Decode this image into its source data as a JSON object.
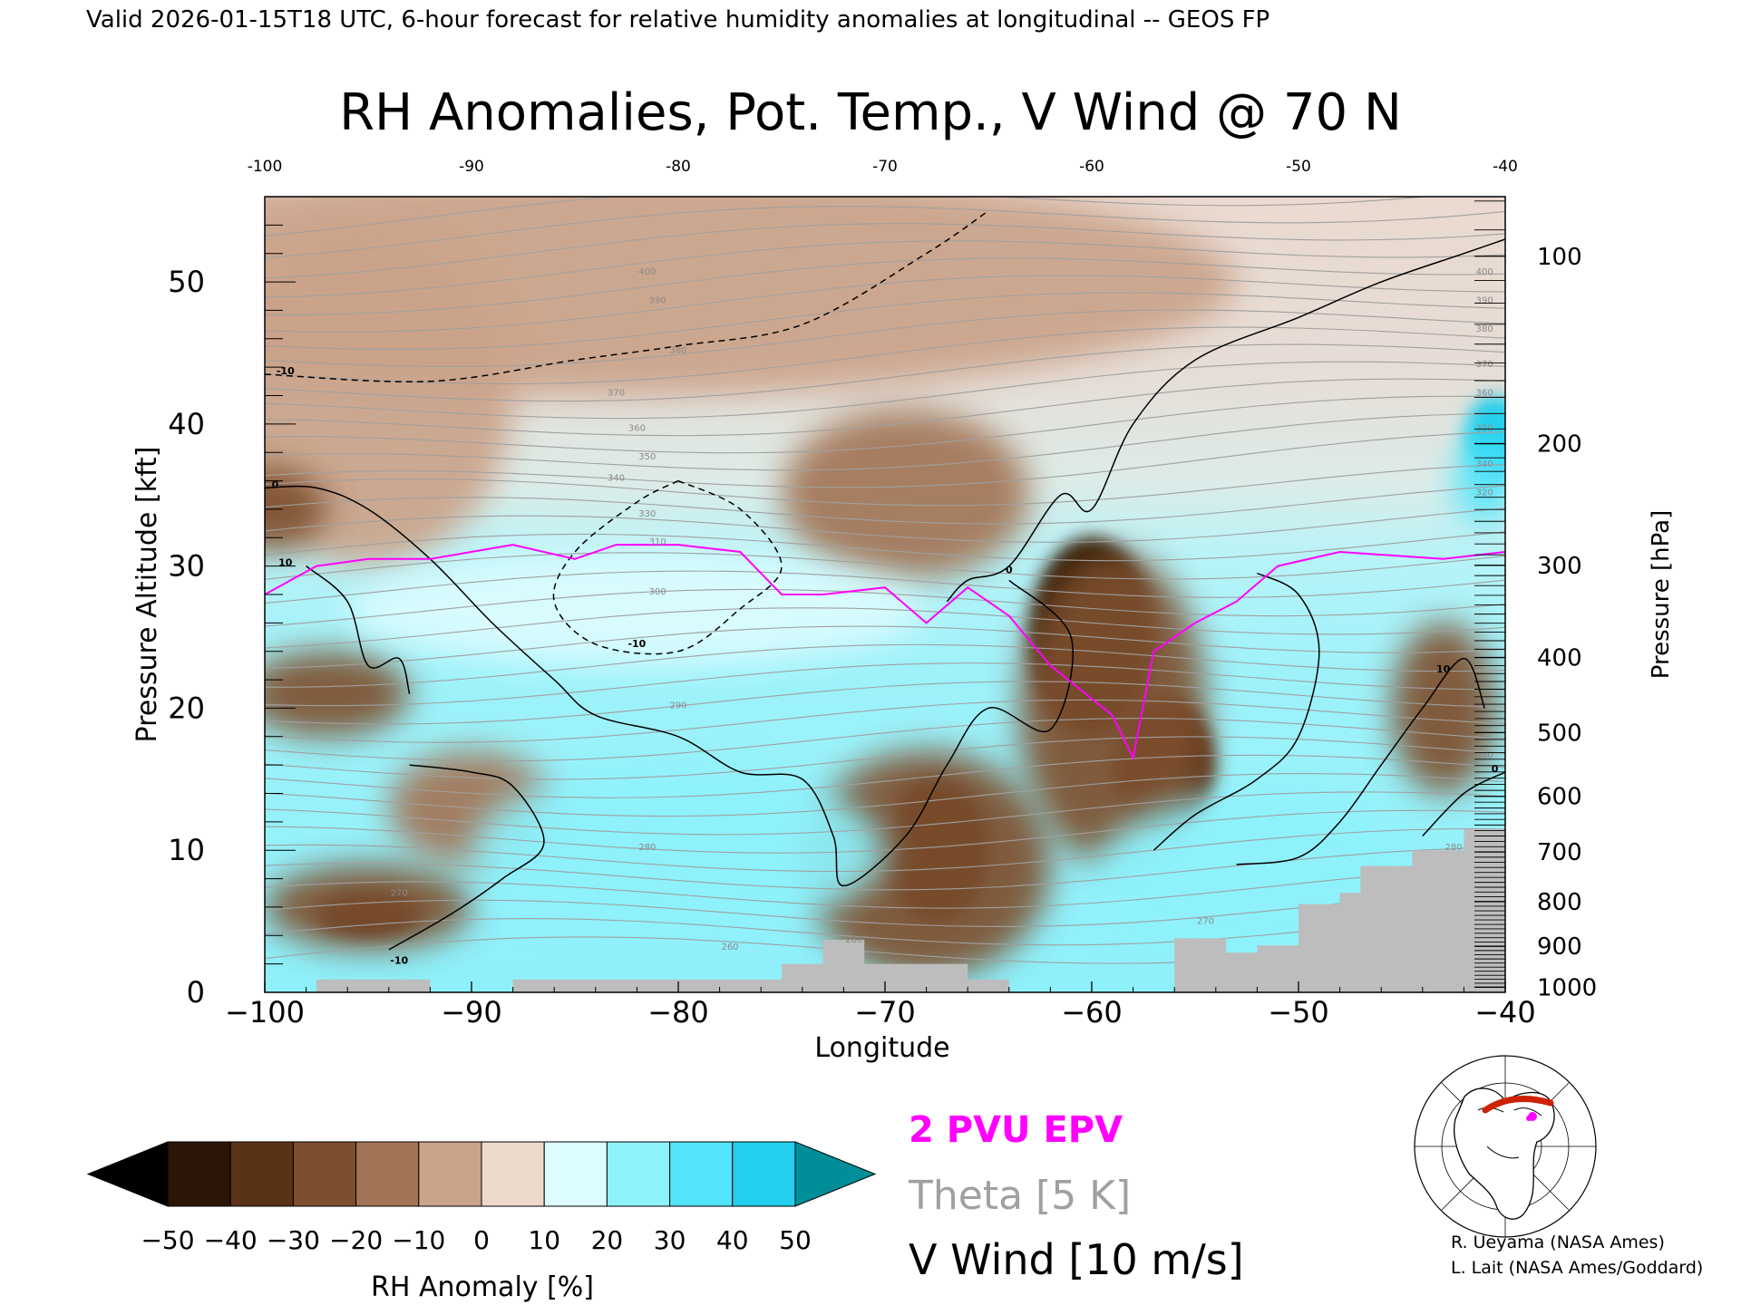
{
  "header": {
    "valid_line": "Valid 2026-01-15T18 UTC, 6-hour forecast for relative humidity anomalies at longitudinal -- GEOS FP"
  },
  "chart_data": {
    "type": "heatmap",
    "title": "RH Anomalies, Pot. Temp., V Wind @ 70 N",
    "xlabel": "Longitude",
    "ylabel": "Pressure Altitude [kft]",
    "y2label": "Pressure [hPa]",
    "xlim": [
      -100,
      -40
    ],
    "ylim": [
      0,
      56
    ],
    "x_ticks": [
      -100,
      -90,
      -80,
      -70,
      -60,
      -50,
      -40
    ],
    "x_tick_labels": [
      "−100",
      "−90",
      "−80",
      "−70",
      "−60",
      "−50",
      "−40"
    ],
    "x_top_tick_labels": [
      "-100",
      "-90",
      "-80",
      "-70",
      "-60",
      "-50",
      "-40"
    ],
    "y_ticks": [
      0,
      10,
      20,
      30,
      40,
      50
    ],
    "y_tick_labels": [
      "0",
      "10",
      "20",
      "30",
      "40",
      "50"
    ],
    "pressure_ticks": [
      {
        "hpa": 100,
        "label": "100"
      },
      {
        "hpa": 200,
        "label": "200"
      },
      {
        "hpa": 300,
        "label": "300"
      },
      {
        "hpa": 400,
        "label": "400"
      },
      {
        "hpa": 500,
        "label": "500"
      },
      {
        "hpa": 600,
        "label": "600"
      },
      {
        "hpa": 700,
        "label": "700"
      },
      {
        "hpa": 800,
        "label": "800"
      },
      {
        "hpa": 900,
        "label": "900"
      },
      {
        "hpa": 1000,
        "label": "1000"
      }
    ],
    "colorbar": {
      "label": "RH Anomaly [%]",
      "levels": [
        -50,
        -40,
        -30,
        -20,
        -10,
        0,
        10,
        20,
        30,
        40,
        50
      ],
      "tick_labels": [
        "−50",
        "−40",
        "−30",
        "−20",
        "−10",
        "0",
        "10",
        "20",
        "30",
        "40",
        "50"
      ],
      "colors": [
        "#000000",
        "#2b1506",
        "#5a3216",
        "#7e4f2e",
        "#a37556",
        "#caa38a",
        "#edd9cc",
        "#dcfcff",
        "#8ef2fc",
        "#52e4fa",
        "#22cfec",
        "#0aa8c8",
        "#008f99"
      ]
    },
    "legend": [
      {
        "label": "2 PVU EPV",
        "color": "#ff00ff"
      },
      {
        "label": "Theta [5 K]",
        "color": "#a0a0a0"
      },
      {
        "label": "V Wind [10 m/s]",
        "color": "#000000"
      }
    ],
    "anomaly_regions": [
      {
        "lon": -83,
        "alt": 50,
        "rx": 30,
        "ry": 8,
        "value": -5
      },
      {
        "lon": -95,
        "alt": 42,
        "rx": 7,
        "ry": 12,
        "value": -10
      },
      {
        "lon": -69,
        "alt": 35,
        "rx": 6,
        "ry": 6,
        "value": -15
      },
      {
        "lon": -100,
        "alt": 34,
        "rx": 3,
        "ry": 3,
        "value": -25
      },
      {
        "lon": -60,
        "alt": 25,
        "rx": 3,
        "ry": 7,
        "value": -45
      },
      {
        "lon": -56.5,
        "alt": 16,
        "rx": 2.5,
        "ry": 5,
        "value": -40
      },
      {
        "lon": -59,
        "alt": 20,
        "rx": 4.5,
        "ry": 11,
        "value": -25
      },
      {
        "lon": -67.5,
        "alt": 10,
        "rx": 2.5,
        "ry": 5,
        "value": -45
      },
      {
        "lon": -71,
        "alt": 11.5,
        "rx": 1.2,
        "ry": 2,
        "value": -40
      },
      {
        "lon": -68,
        "alt": 9,
        "rx": 6,
        "ry": 8,
        "value": -25
      },
      {
        "lon": -95,
        "alt": 5.5,
        "rx": 2.5,
        "ry": 1.5,
        "value": -45
      },
      {
        "lon": -95,
        "alt": 6,
        "rx": 5,
        "ry": 3,
        "value": -25
      },
      {
        "lon": -90,
        "alt": 13,
        "rx": 4,
        "ry": 4,
        "value": -20
      },
      {
        "lon": -97,
        "alt": 21,
        "rx": 4,
        "ry": 3,
        "value": -25
      },
      {
        "lon": -43,
        "alt": 20,
        "rx": 2.5,
        "ry": 6,
        "value": -25
      },
      {
        "lon": -82,
        "alt": 27,
        "rx": 14,
        "ry": 4,
        "value": 15
      },
      {
        "lon": -80,
        "alt": 10,
        "rx": 10,
        "ry": 6,
        "value": 20
      },
      {
        "lon": -52,
        "alt": 8,
        "rx": 8,
        "ry": 6,
        "value": 20
      },
      {
        "lon": -40.5,
        "alt": 39,
        "rx": 1.5,
        "ry": 3,
        "value": 45
      },
      {
        "lon": -41,
        "alt": 36,
        "rx": 1.5,
        "ry": 3,
        "value": 30
      }
    ],
    "epv_2pvu": [
      [
        -100,
        28
      ],
      [
        -97.5,
        30
      ],
      [
        -95,
        30.5
      ],
      [
        -92,
        30.5
      ],
      [
        -88,
        31.5
      ],
      [
        -85,
        30.5
      ],
      [
        -83,
        31.5
      ],
      [
        -80,
        31.5
      ],
      [
        -77,
        31
      ],
      [
        -75,
        28
      ],
      [
        -73,
        28
      ],
      [
        -70,
        28.5
      ],
      [
        -68,
        26
      ],
      [
        -66,
        28.5
      ],
      [
        -64,
        26.5
      ],
      [
        -62,
        23
      ],
      [
        -59,
        19.5
      ],
      [
        -58,
        16.5
      ],
      [
        -57,
        24
      ],
      [
        -55,
        26
      ],
      [
        -53,
        27.5
      ],
      [
        -51,
        30
      ],
      [
        -48,
        31
      ],
      [
        -43,
        30.5
      ],
      [
        -40,
        31
      ]
    ],
    "v_wind_contours": [
      {
        "label": "0",
        "points": [
          [
            -100,
            35.5
          ],
          [
            -97.5,
            35.5
          ],
          [
            -95,
            34
          ],
          [
            -92,
            30.5
          ],
          [
            -89,
            26
          ],
          [
            -86,
            22
          ],
          [
            -84,
            19.5
          ],
          [
            -80,
            18
          ],
          [
            -77,
            15.5
          ],
          [
            -74,
            15
          ],
          [
            -72.5,
            11
          ],
          [
            -72,
            7.5
          ],
          [
            -69,
            11
          ],
          [
            -67,
            16
          ],
          [
            -65,
            20
          ],
          [
            -62,
            18.5
          ],
          [
            -61,
            25
          ],
          [
            -64,
            29
          ]
        ]
      },
      {
        "label": "0",
        "points": [
          [
            -67,
            27.5
          ],
          [
            -66,
            29
          ],
          [
            -64,
            30
          ],
          [
            -61.5,
            35
          ],
          [
            -60,
            34
          ],
          [
            -58,
            40
          ],
          [
            -55,
            44.5
          ],
          [
            -50,
            47.5
          ],
          [
            -46,
            50
          ],
          [
            -42,
            52
          ],
          [
            -40,
            53
          ]
        ]
      },
      {
        "label": "-10",
        "points": [
          [
            -100,
            43.5
          ],
          [
            -92,
            43
          ],
          [
            -85,
            44.5
          ],
          [
            -80,
            45.5
          ],
          [
            -74,
            47
          ],
          [
            -68,
            52
          ],
          [
            -65,
            55
          ]
        ]
      },
      {
        "label": "-10",
        "points": [
          [
            -80,
            36
          ],
          [
            -77,
            34
          ],
          [
            -75,
            30
          ],
          [
            -77,
            27
          ],
          [
            -80,
            24
          ],
          [
            -84,
            24.5
          ],
          [
            -86,
            27.5
          ],
          [
            -85,
            31
          ],
          [
            -82,
            34.5
          ],
          [
            -80,
            36
          ]
        ]
      },
      {
        "label": "10",
        "points": [
          [
            -98,
            30
          ],
          [
            -96,
            27.5
          ],
          [
            -95,
            23
          ],
          [
            -93.5,
            23.5
          ],
          [
            -93,
            21
          ]
        ]
      },
      {
        "label": "0",
        "points": [
          [
            -93,
            16
          ],
          [
            -90,
            15.5
          ],
          [
            -88,
            14.5
          ],
          [
            -86.5,
            10.5
          ],
          [
            -88.5,
            8
          ],
          [
            -91,
            5.5
          ],
          [
            -94,
            3
          ]
        ]
      },
      {
        "label": "10",
        "points": [
          [
            -52,
            29.5
          ],
          [
            -50,
            28
          ],
          [
            -49,
            24
          ],
          [
            -50,
            18
          ],
          [
            -52,
            15
          ],
          [
            -55,
            12.5
          ],
          [
            -57,
            10
          ]
        ]
      },
      {
        "label": "10",
        "points": [
          [
            -41,
            20
          ],
          [
            -42,
            23.5
          ],
          [
            -44,
            20
          ],
          [
            -46,
            16
          ],
          [
            -48,
            12
          ],
          [
            -50,
            9.5
          ],
          [
            -53,
            9
          ]
        ]
      },
      {
        "label": "0",
        "points": [
          [
            -40,
            15.5
          ],
          [
            -42,
            14
          ],
          [
            -44,
            11
          ]
        ]
      }
    ],
    "topography": [
      [
        -100,
        0
      ],
      [
        -97.5,
        0
      ],
      [
        -97.5,
        0.9
      ],
      [
        -92,
        0.9
      ],
      [
        -92,
        0
      ],
      [
        -88,
        0
      ],
      [
        -88,
        0.9
      ],
      [
        -75,
        0.9
      ],
      [
        -75,
        2
      ],
      [
        -73,
        2
      ],
      [
        -73,
        3.7
      ],
      [
        -71,
        3.7
      ],
      [
        -71,
        2
      ],
      [
        -66,
        2
      ],
      [
        -66,
        0.9
      ],
      [
        -64,
        0.9
      ],
      [
        -64,
        0
      ],
      [
        -56,
        0
      ],
      [
        -56,
        3.8
      ],
      [
        -53.5,
        3.8
      ],
      [
        -53.5,
        2.8
      ],
      [
        -52,
        2.8
      ],
      [
        -52,
        3.3
      ],
      [
        -50,
        3.3
      ],
      [
        -50,
        6.2
      ],
      [
        -48,
        6.2
      ],
      [
        -48,
        7
      ],
      [
        -47,
        7
      ],
      [
        -47,
        8.9
      ],
      [
        -44.5,
        8.9
      ],
      [
        -44.5,
        10
      ],
      [
        -42,
        10
      ],
      [
        -42,
        11.5
      ],
      [
        -40,
        11.5
      ],
      [
        -40,
        0
      ]
    ],
    "theta_labels": [
      {
        "lon": -80,
        "alt": 45,
        "text": "380"
      },
      {
        "lon": -81,
        "alt": 48.5,
        "text": "390"
      },
      {
        "lon": -81.5,
        "alt": 50.5,
        "text": "400"
      },
      {
        "lon": -83,
        "alt": 42,
        "text": "370"
      },
      {
        "lon": -82,
        "alt": 39.5,
        "text": "360"
      },
      {
        "lon": -81.5,
        "alt": 37.5,
        "text": "350"
      },
      {
        "lon": -83,
        "alt": 36,
        "text": "340"
      },
      {
        "lon": -81.5,
        "alt": 33.5,
        "text": "330"
      },
      {
        "lon": -81,
        "alt": 31.5,
        "text": "310"
      },
      {
        "lon": -81,
        "alt": 28,
        "text": "300"
      },
      {
        "lon": -80,
        "alt": 20,
        "text": "290"
      },
      {
        "lon": -81.5,
        "alt": 10,
        "text": "280"
      },
      {
        "lon": -93.5,
        "alt": 6.8,
        "text": "270"
      },
      {
        "lon": -77.5,
        "alt": 3,
        "text": "260"
      },
      {
        "lon": -71.5,
        "alt": 3.5,
        "text": "280"
      },
      {
        "lon": -54.5,
        "alt": 4.8,
        "text": "270"
      },
      {
        "lon": -41,
        "alt": 50.5,
        "text": "400"
      },
      {
        "lon": -41,
        "alt": 48.5,
        "text": "390"
      },
      {
        "lon": -41,
        "alt": 46.5,
        "text": "380"
      },
      {
        "lon": -41,
        "alt": 44,
        "text": "370"
      },
      {
        "lon": -41,
        "alt": 42,
        "text": "360"
      },
      {
        "lon": -41,
        "alt": 39.5,
        "text": "350"
      },
      {
        "lon": -41,
        "alt": 37,
        "text": "340"
      },
      {
        "lon": -41,
        "alt": 35,
        "text": "320"
      },
      {
        "lon": -41,
        "alt": 16.5,
        "text": "280"
      },
      {
        "lon": -42.5,
        "alt": 10,
        "text": "280"
      }
    ],
    "wind_labels": [
      {
        "lon": -99,
        "alt": 43.5,
        "text": "-10"
      },
      {
        "lon": -99.5,
        "alt": 35.5,
        "text": "0"
      },
      {
        "lon": -99,
        "alt": 30,
        "text": "10"
      },
      {
        "lon": -82,
        "alt": 24.3,
        "text": "-10"
      },
      {
        "lon": -64,
        "alt": 29.5,
        "text": "0"
      },
      {
        "lon": -43,
        "alt": 22.5,
        "text": "10"
      },
      {
        "lon": -40.5,
        "alt": 15.5,
        "text": "0"
      },
      {
        "lon": -93.5,
        "alt": 2,
        "text": "-10"
      }
    ]
  },
  "inset_map": {
    "description_icon": "polar-map-icon"
  },
  "credits": [
    "R. Ueyama (NASA Ames)",
    "L. Lait (NASA Ames/Goddard)"
  ]
}
